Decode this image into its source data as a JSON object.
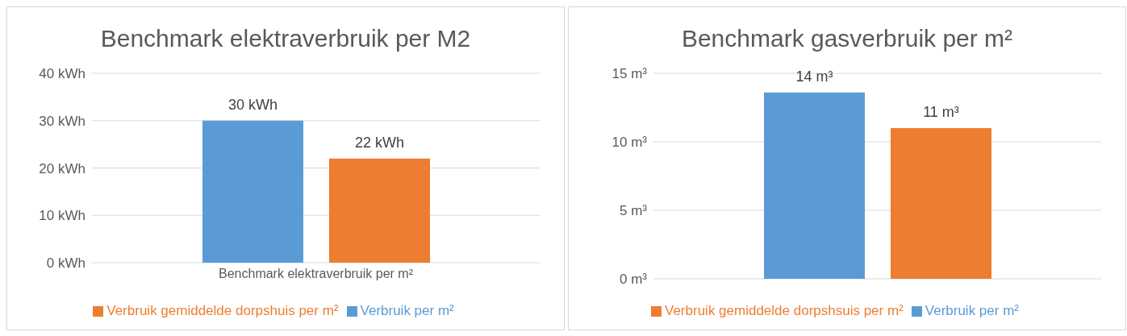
{
  "chart_data": [
    {
      "type": "bar",
      "title": "Benchmark elektraverbruik per M2",
      "categories": [
        "Benchmark elektraverbruik per m²"
      ],
      "series": [
        {
          "name": "Verbruik per m²",
          "color": "#5b9bd5",
          "values": [
            30
          ],
          "value_labels": [
            "30 kWh"
          ]
        },
        {
          "name": "Verbruik gemiddelde dorpshuis per m²",
          "color": "#ed7d31",
          "values": [
            22
          ],
          "value_labels": [
            "22 kWh"
          ]
        }
      ],
      "ylim": [
        0,
        40
      ],
      "yticks": [
        {
          "value": 0,
          "label": "0 kWh"
        },
        {
          "value": 10,
          "label": "10 kWh"
        },
        {
          "value": 20,
          "label": "20 kWh"
        },
        {
          "value": 30,
          "label": "30 kWh"
        },
        {
          "value": 40,
          "label": "40 kWh"
        }
      ],
      "grid": "y",
      "legend": "bottom"
    },
    {
      "type": "bar",
      "title": "Benchmark gasverbruik per m²",
      "categories": [
        null
      ],
      "series": [
        {
          "name": "Verbruik per m²",
          "color": "#5b9bd5",
          "values": [
            13.6
          ],
          "value_labels": [
            "14 m³"
          ]
        },
        {
          "name": "Verbruik gemiddelde dorpshsuis per m²",
          "color": "#ed7d31",
          "values": [
            11
          ],
          "value_labels": [
            "11 m³"
          ]
        }
      ],
      "ylim": [
        0,
        15
      ],
      "yticks": [
        {
          "value": 0,
          "label": "0 m³"
        },
        {
          "value": 5,
          "label": "5 m³"
        },
        {
          "value": 10,
          "label": "10 m³"
        },
        {
          "value": 15,
          "label": "15 m³"
        }
      ],
      "grid": "y",
      "legend": "bottom"
    }
  ]
}
